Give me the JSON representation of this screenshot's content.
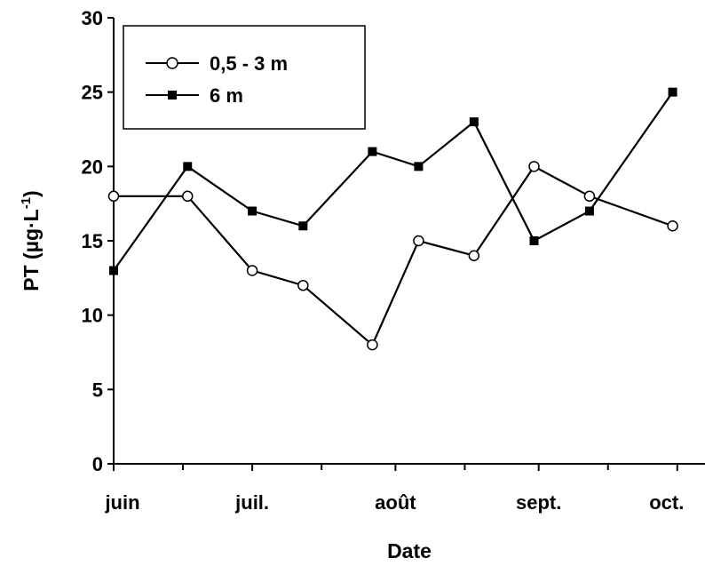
{
  "chart_data": {
    "type": "line",
    "xlabel": "Date",
    "ylabel": "PT (µg·L",
    "ylabel_sup": "-1",
    "ylabel_close": ")",
    "ylim": [
      0,
      30
    ],
    "yticks": [
      0,
      5,
      10,
      15,
      20,
      25,
      30
    ],
    "x_tick_labels": [
      "juin",
      "juil.",
      "août",
      "sept.",
      "oct."
    ],
    "grid": false,
    "legend_position": "top-left",
    "series": [
      {
        "name": "0,5 - 3 m",
        "marker": "open-circle",
        "x": [
          "06-01",
          "06-17",
          "07-01",
          "07-12",
          "07-27",
          "08-06",
          "08-18",
          "08-31",
          "09-12",
          "09-30"
        ],
        "values": [
          18,
          18,
          13,
          12,
          8,
          15,
          14,
          20,
          18,
          16
        ]
      },
      {
        "name": "6 m",
        "marker": "filled-square",
        "x": [
          "06-01",
          "06-17",
          "07-01",
          "07-12",
          "07-27",
          "08-06",
          "08-18",
          "08-31",
          "09-12",
          "09-30"
        ],
        "values": [
          13,
          20,
          17,
          16,
          21,
          20,
          23,
          15,
          17,
          25
        ]
      }
    ]
  }
}
